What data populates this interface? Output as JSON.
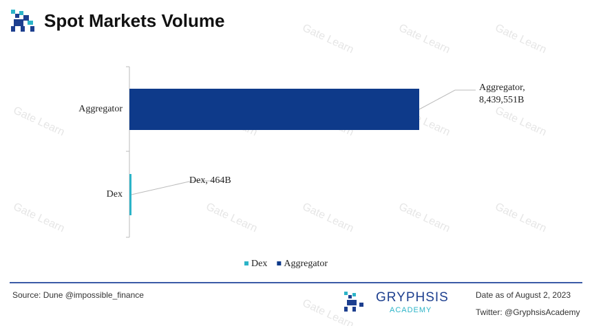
{
  "chart_data": {
    "type": "bar",
    "orientation": "horizontal",
    "title": "Spot Markets Volume",
    "categories": [
      "Aggregator",
      "Dex"
    ],
    "series": [
      {
        "name": "Dex",
        "color": "#2cb4c8",
        "values": [
          null,
          464
        ],
        "value_labels": [
          null,
          "Dex, 464B"
        ]
      },
      {
        "name": "Aggregator",
        "color": "#0e3a8a",
        "values": [
          8439551,
          null
        ],
        "value_labels": [
          "Aggregator, 8,439,551B",
          null
        ]
      }
    ],
    "watermark": "Gate Learn"
  },
  "footer": {
    "source": "Source: Dune @impossible_finance",
    "brand": "GRYPHSIS",
    "brand_sub": "ACADEMY",
    "date": "Date as of August 2, 2023",
    "twitter": "Twitter: @GryphsisAcademy"
  }
}
